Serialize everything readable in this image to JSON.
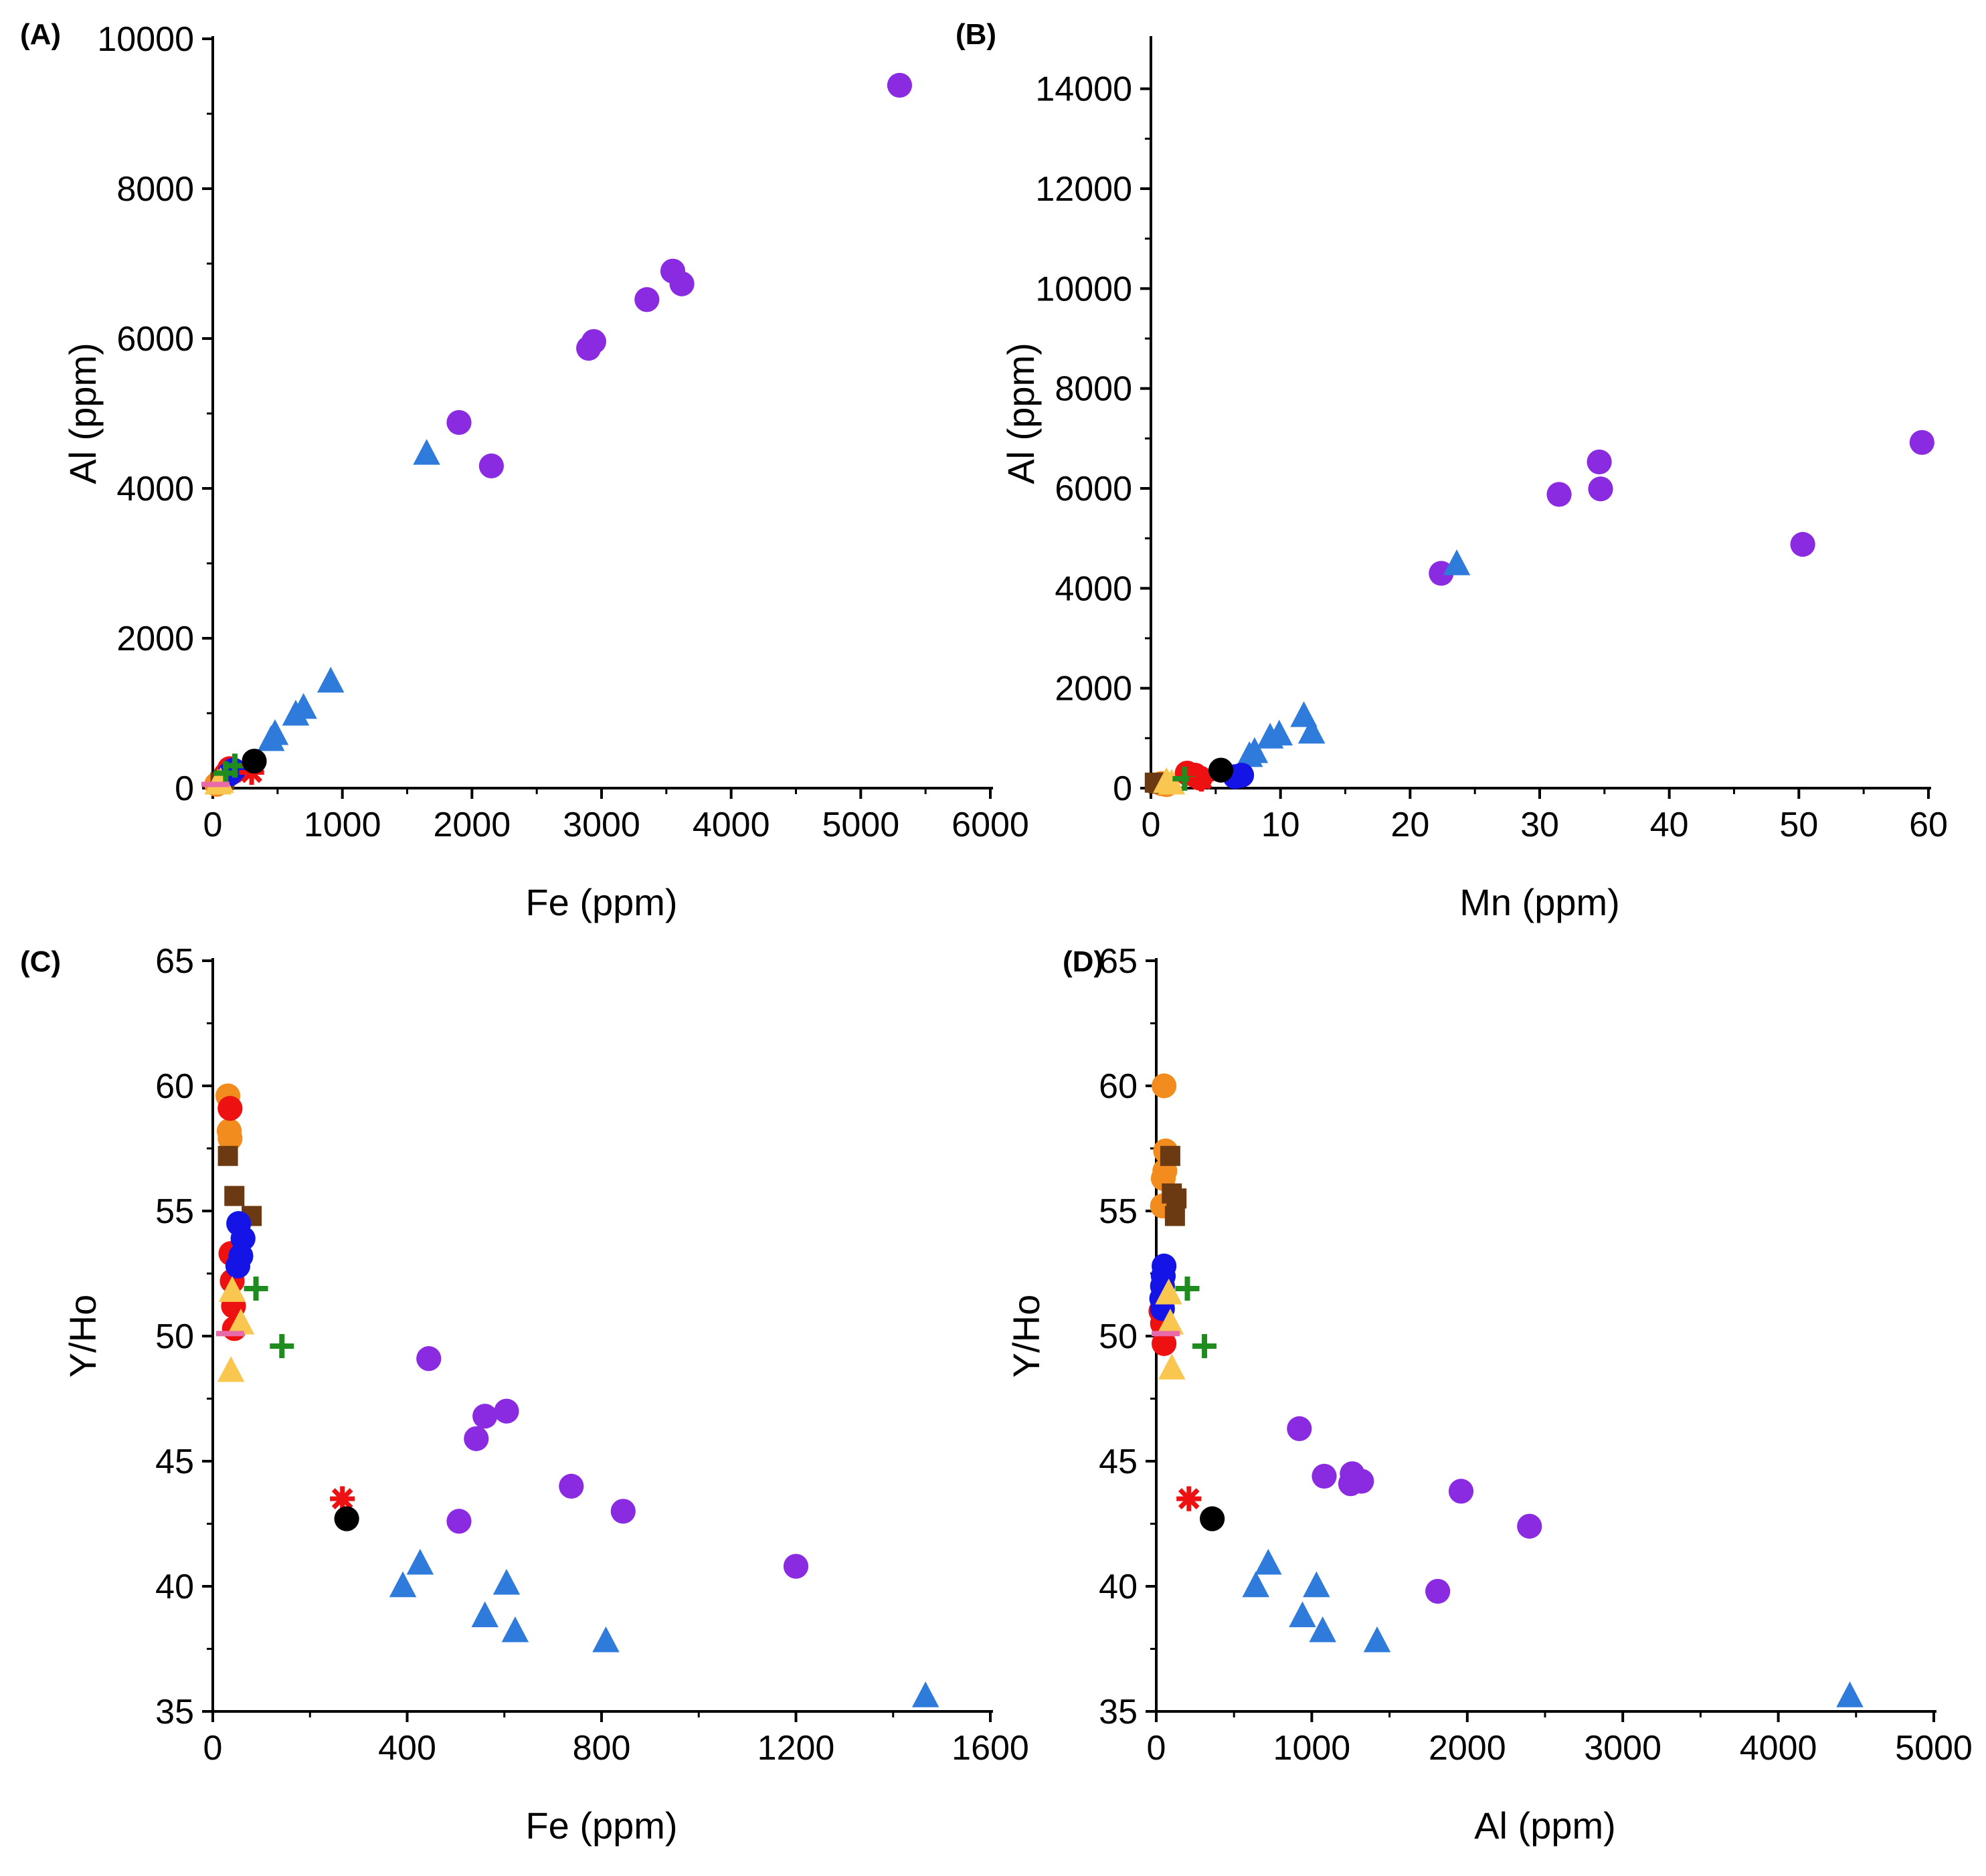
{
  "colors": {
    "purple": "#8A2BE2",
    "blue_triangle": "#2E7BDB",
    "orange": "#F28C1E",
    "red": "#EE1111",
    "brown": "#6B3A12",
    "blue": "#1414E6",
    "yellow": "#F9C74F",
    "green": "#1E8C1E",
    "black": "#000000",
    "pink": "#E86AA8"
  },
  "chart_data": [
    {
      "panel": "(A)",
      "type": "scatter",
      "xlabel": "Fe (ppm)",
      "ylabel": "Al (ppm)",
      "xlim": [
        0,
        6000
      ],
      "ylim": [
        0,
        10000
      ],
      "xticks": [
        "0",
        "1000",
        "2000",
        "3000",
        "4000",
        "5000",
        "6000"
      ],
      "yticks": [
        "0",
        "2000",
        "4000",
        "6000",
        "8000",
        "10000"
      ],
      "series": [
        {
          "marker": "circle",
          "color": "purple",
          "points": [
            [
              5300,
              9380
            ],
            [
              3550,
              6900
            ],
            [
              3620,
              6730
            ],
            [
              3350,
              6520
            ],
            [
              2940,
              5960
            ],
            [
              2900,
              5870
            ],
            [
              1900,
              4880
            ],
            [
              2150,
              4300
            ]
          ]
        },
        {
          "marker": "triangle",
          "color": "blue_triangle",
          "points": [
            [
              1650,
              4460
            ],
            [
              910,
              1420
            ],
            [
              700,
              1070
            ],
            [
              640,
              980
            ],
            [
              480,
              720
            ],
            [
              450,
              640
            ]
          ]
        },
        {
          "marker": "circle",
          "color": "red",
          "points": [
            [
              130,
              260
            ],
            [
              160,
              220
            ],
            [
              100,
              180
            ]
          ]
        },
        {
          "marker": "circle",
          "color": "orange",
          "points": [
            [
              70,
              90
            ],
            [
              40,
              60
            ],
            [
              30,
              50
            ]
          ]
        },
        {
          "marker": "square",
          "color": "brown",
          "points": [
            [
              90,
              110
            ],
            [
              60,
              80
            ]
          ]
        },
        {
          "marker": "circle",
          "color": "blue",
          "points": [
            [
              160,
              240
            ],
            [
              130,
              190
            ]
          ]
        },
        {
          "marker": "triangle",
          "color": "yellow",
          "points": [
            [
              40,
              60
            ],
            [
              60,
              80
            ]
          ]
        },
        {
          "marker": "plus",
          "color": "green",
          "points": [
            [
              100,
              200
            ],
            [
              170,
              300
            ]
          ]
        },
        {
          "marker": "asterisk",
          "color": "red",
          "points": [
            [
              300,
              210
            ]
          ]
        },
        {
          "marker": "circle",
          "color": "black",
          "points": [
            [
              320,
              360
            ]
          ]
        },
        {
          "marker": "dash",
          "color": "pink",
          "points": [
            [
              20,
              50
            ]
          ]
        }
      ]
    },
    {
      "panel": "(B)",
      "type": "scatter",
      "xlabel": "Mn (ppm)",
      "ylabel": "Al (ppm)",
      "xlim": [
        0,
        60
      ],
      "ylim": [
        0,
        15000
      ],
      "xticks": [
        "0",
        "10",
        "20",
        "30",
        "40",
        "50",
        "60"
      ],
      "yticks": [
        "0",
        "2000",
        "4000",
        "6000",
        "8000",
        "10000",
        "12000",
        "14000"
      ],
      "series": [
        {
          "marker": "circle",
          "color": "purple",
          "points": [
            [
              59.5,
              6920
            ],
            [
              34.6,
              6530
            ],
            [
              34.7,
              5990
            ],
            [
              31.5,
              5880
            ],
            [
              50.3,
              4880
            ],
            [
              22.4,
              4300
            ]
          ]
        },
        {
          "marker": "triangle",
          "color": "blue_triangle",
          "points": [
            [
              23.6,
              4480
            ],
            [
              11.8,
              1440
            ],
            [
              12.4,
              1110
            ],
            [
              9.9,
              1070
            ],
            [
              9.2,
              1010
            ],
            [
              8.0,
              720
            ],
            [
              7.6,
              640
            ]
          ]
        },
        {
          "marker": "circle",
          "color": "red",
          "points": [
            [
              2.8,
              300
            ],
            [
              3.4,
              260
            ],
            [
              3.8,
              200
            ]
          ]
        },
        {
          "marker": "circle",
          "color": "orange",
          "points": [
            [
              0.8,
              90
            ],
            [
              1.2,
              70
            ]
          ]
        },
        {
          "marker": "square",
          "color": "brown",
          "points": [
            [
              0.3,
              110
            ],
            [
              0.6,
              90
            ]
          ]
        },
        {
          "marker": "circle",
          "color": "blue",
          "points": [
            [
              7.0,
              260
            ],
            [
              6.5,
              230
            ]
          ]
        },
        {
          "marker": "triangle",
          "color": "yellow",
          "points": [
            [
              1.2,
              120
            ],
            [
              1.6,
              90
            ]
          ]
        },
        {
          "marker": "plus",
          "color": "green",
          "points": [
            [
              2.6,
              190
            ]
          ]
        },
        {
          "marker": "asterisk",
          "color": "red",
          "points": [
            [
              3.9,
              180
            ]
          ]
        },
        {
          "marker": "circle",
          "color": "black",
          "points": [
            [
              5.4,
              360
            ]
          ]
        }
      ]
    },
    {
      "panel": "(C)",
      "type": "scatter",
      "xlabel": "Fe (ppm)",
      "ylabel": "Y/Ho",
      "xlim": [
        0,
        1800
      ],
      "ylim": [
        35,
        65
      ],
      "xticks": [
        "0",
        "400",
        "800",
        "1200",
        "1600"
      ],
      "yticks": [
        "35",
        "40",
        "45",
        "50",
        "55",
        "60",
        "65"
      ],
      "series": [
        {
          "marker": "circle",
          "color": "purple",
          "points": [
            [
              500,
              49.1
            ],
            [
              630,
              46.8
            ],
            [
              680,
              47.0
            ],
            [
              610,
              45.9
            ],
            [
              830,
              44.0
            ],
            [
              950,
              43.0
            ],
            [
              570,
              42.6
            ],
            [
              1350,
              40.8
            ]
          ]
        },
        {
          "marker": "triangle",
          "color": "blue_triangle",
          "points": [
            [
              480,
              40.9
            ],
            [
              440,
              40.0
            ],
            [
              680,
              40.1
            ],
            [
              630,
              38.8
            ],
            [
              700,
              38.2
            ],
            [
              910,
              37.8
            ],
            [
              1650,
              35.6
            ]
          ]
        },
        {
          "marker": "circle",
          "color": "orange",
          "points": [
            [
              35,
              59.6
            ],
            [
              38,
              58.2
            ],
            [
              40,
              57.9
            ]
          ]
        },
        {
          "marker": "circle",
          "color": "red",
          "points": [
            [
              40,
              59.1
            ],
            [
              42,
              53.3
            ],
            [
              45,
              52.2
            ],
            [
              48,
              51.2
            ],
            [
              50,
              50.3
            ]
          ]
        },
        {
          "marker": "square",
          "color": "brown",
          "points": [
            [
              35,
              57.2
            ],
            [
              50,
              55.6
            ],
            [
              90,
              54.8
            ]
          ]
        },
        {
          "marker": "circle",
          "color": "blue",
          "points": [
            [
              60,
              54.5
            ],
            [
              70,
              53.9
            ],
            [
              65,
              53.2
            ],
            [
              58,
              52.8
            ]
          ]
        },
        {
          "marker": "triangle",
          "color": "yellow",
          "points": [
            [
              45,
              51.8
            ],
            [
              65,
              50.5
            ],
            [
              42,
              48.6
            ]
          ]
        },
        {
          "marker": "plus",
          "color": "green",
          "points": [
            [
              100,
              51.9
            ],
            [
              160,
              49.6
            ]
          ]
        },
        {
          "marker": "asterisk",
          "color": "red",
          "points": [
            [
              300,
              43.5
            ]
          ]
        },
        {
          "marker": "circle",
          "color": "black",
          "points": [
            [
              310,
              42.7
            ]
          ]
        },
        {
          "marker": "dash",
          "color": "pink",
          "points": [
            [
              40,
              50.1
            ]
          ]
        }
      ]
    },
    {
      "panel": "(D)",
      "type": "scatter",
      "xlabel": "Al (ppm)",
      "ylabel": "Y/Ho",
      "xlim": [
        0,
        5000
      ],
      "ylim": [
        35,
        65
      ],
      "xticks": [
        "0",
        "1000",
        "2000",
        "3000",
        "4000",
        "5000"
      ],
      "yticks": [
        "35",
        "40",
        "45",
        "50",
        "55",
        "60",
        "65"
      ],
      "series": [
        {
          "marker": "circle",
          "color": "purple",
          "points": [
            [
              920,
              46.3
            ],
            [
              1080,
              44.4
            ],
            [
              1260,
              44.5
            ],
            [
              1320,
              44.2
            ],
            [
              1250,
              44.1
            ],
            [
              1960,
              43.8
            ],
            [
              2400,
              42.4
            ],
            [
              1810,
              39.8
            ]
          ]
        },
        {
          "marker": "triangle",
          "color": "blue_triangle",
          "points": [
            [
              720,
              40.9
            ],
            [
              640,
              40.0
            ],
            [
              1030,
              40.0
            ],
            [
              940,
              38.8
            ],
            [
              1070,
              38.2
            ],
            [
              1420,
              37.8
            ],
            [
              4460,
              35.6
            ]
          ]
        },
        {
          "marker": "circle",
          "color": "orange",
          "points": [
            [
              50,
              60.0
            ],
            [
              60,
              57.4
            ],
            [
              55,
              56.6
            ],
            [
              45,
              56.3
            ],
            [
              40,
              55.2
            ]
          ]
        },
        {
          "marker": "circle",
          "color": "red",
          "points": [
            [
              30,
              51.0
            ],
            [
              40,
              50.5
            ],
            [
              50,
              49.7
            ]
          ]
        },
        {
          "marker": "square",
          "color": "brown",
          "points": [
            [
              90,
              57.2
            ],
            [
              100,
              55.7
            ],
            [
              130,
              55.5
            ],
            [
              120,
              54.8
            ]
          ]
        },
        {
          "marker": "circle",
          "color": "blue",
          "points": [
            [
              50,
              52.8
            ],
            [
              45,
              52.4
            ],
            [
              40,
              52.0
            ],
            [
              35,
              51.5
            ],
            [
              40,
              51.1
            ]
          ]
        },
        {
          "marker": "triangle",
          "color": "yellow",
          "points": [
            [
              80,
              51.7
            ],
            [
              90,
              50.5
            ],
            [
              100,
              48.7
            ]
          ]
        },
        {
          "marker": "plus",
          "color": "green",
          "points": [
            [
              200,
              51.9
            ],
            [
              310,
              49.6
            ]
          ]
        },
        {
          "marker": "asterisk",
          "color": "red",
          "points": [
            [
              210,
              43.5
            ]
          ]
        },
        {
          "marker": "circle",
          "color": "black",
          "points": [
            [
              360,
              42.7
            ]
          ]
        },
        {
          "marker": "dash",
          "color": "pink",
          "points": [
            [
              60,
              50.1
            ]
          ]
        }
      ]
    }
  ]
}
